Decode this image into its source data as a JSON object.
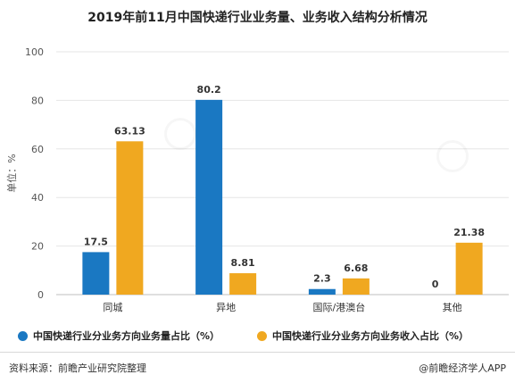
{
  "title": "2019年前11月中国快递行业业务量、业务收入结构分析情况",
  "chart_data": {
    "type": "bar",
    "categories": [
      "同城",
      "异地",
      "国际/港澳台",
      "其他"
    ],
    "series": [
      {
        "name": "中国快递行业分业务方向业务量占比（%）",
        "values": [
          17.5,
          80.2,
          2.3,
          0
        ],
        "labels": [
          "17.5",
          "80.2",
          "2.3",
          "0"
        ],
        "color": "#1a78c2"
      },
      {
        "name": "中国快递行业分业务方向业务收入占比（%）",
        "values": [
          63.13,
          8.81,
          6.68,
          21.38
        ],
        "labels": [
          "63.13",
          "8.81",
          "6.68",
          "21.38"
        ],
        "color": "#f0a820"
      }
    ],
    "ylabel": "单位：%",
    "ylim": [
      0,
      100
    ],
    "yticks": [
      0,
      20,
      40,
      60,
      80,
      100
    ],
    "grid": true,
    "legend": "bottom"
  },
  "footer": {
    "source": "资料来源：前瞻产业研究院整理",
    "brand": "@前瞻经济学人APP"
  }
}
